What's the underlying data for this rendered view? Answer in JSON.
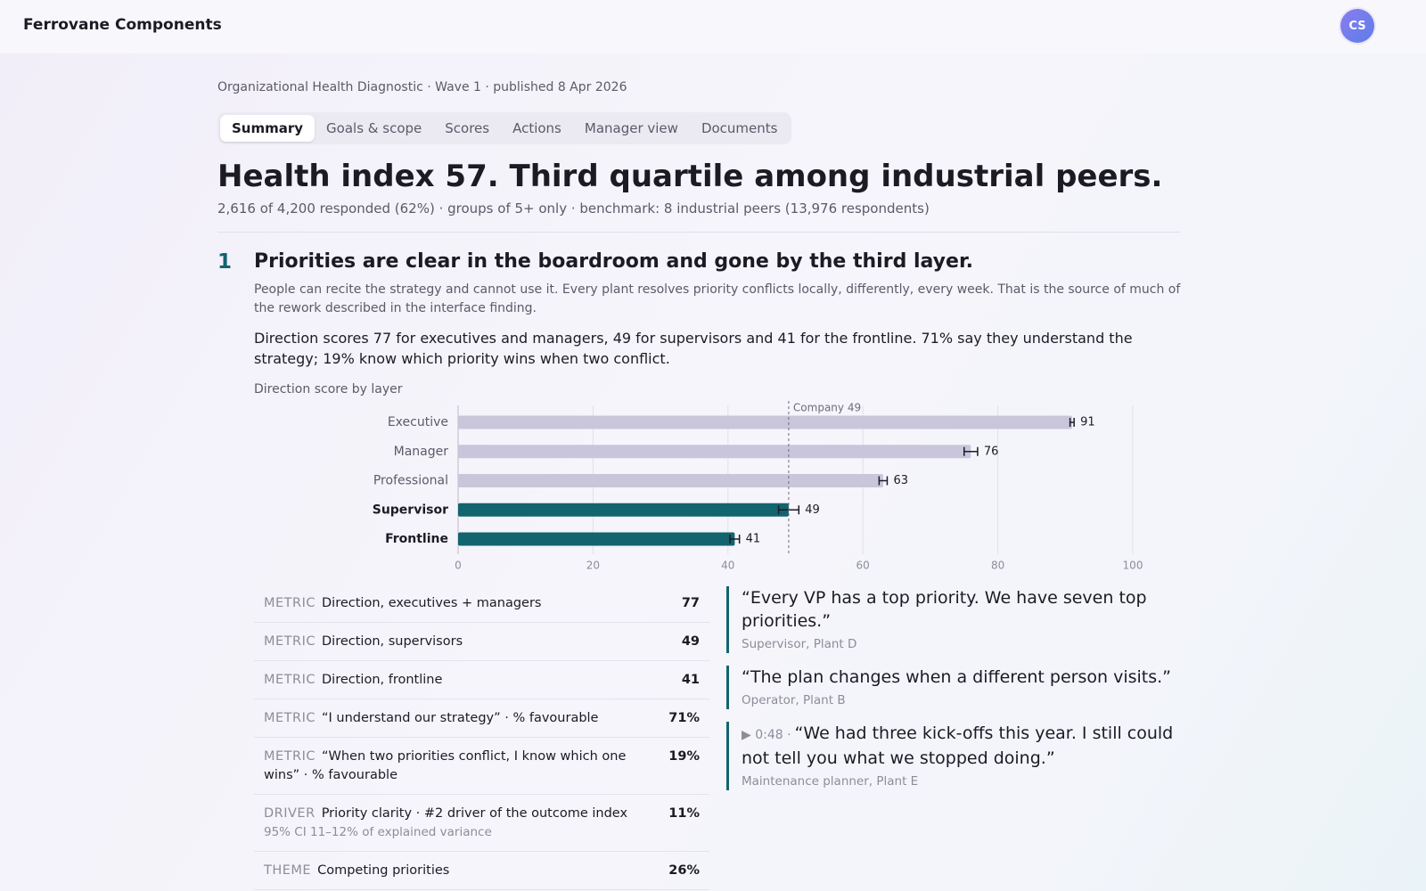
{
  "header": {
    "brand": "Ferrovane Components",
    "avatar": "CS"
  },
  "breadcrumb": "Organizational Health Diagnostic · Wave 1 · published 8 Apr 2026",
  "tabs": [
    "Summary",
    "Goals & scope",
    "Scores",
    "Actions",
    "Manager view",
    "Documents"
  ],
  "active_tab": "Summary",
  "headline": "Health index 57. Third quartile among industrial peers.",
  "subline": "2,616 of 4,200 responded (62%) · groups of 5+ only · benchmark: 8 industrial peers (13,976 respondents)",
  "finding": {
    "number": "1",
    "title": "Priorities are clear in the boardroom and gone by the third layer.",
    "description": "People can recite the strategy and cannot use it. Every plant resolves priority conflicts locally, differently, every week. That is the source of much of the rework described in the interface finding.",
    "body": "Direction scores 77 for executives and managers, 49 for supervisors and 41 for the frontline. 71% say they understand the strategy; 19% know which priority wins when two conflict."
  },
  "chart_data": {
    "type": "bar",
    "orientation": "horizontal",
    "title": "Direction score by layer",
    "categories": [
      "Executive",
      "Manager",
      "Professional",
      "Supervisor",
      "Frontline"
    ],
    "values": [
      91,
      76,
      63,
      49,
      41
    ],
    "errors": [
      0.3,
      1,
      0.6,
      1.5,
      0.7
    ],
    "base_color": "#c9c6db",
    "highlight_color": "#12646e",
    "highlighted": [
      "Supervisor",
      "Frontline"
    ],
    "reference": {
      "value": 49,
      "label": "Company 49"
    },
    "xlim": [
      0,
      100
    ],
    "xticks": [
      0,
      20,
      40,
      60,
      80,
      100
    ],
    "grid": true
  },
  "metrics": [
    {
      "kind": "METRIC",
      "label": "Direction, executives + managers",
      "value": "77"
    },
    {
      "kind": "METRIC",
      "label": "Direction, supervisors",
      "value": "49"
    },
    {
      "kind": "METRIC",
      "label": "Direction, frontline",
      "value": "41"
    },
    {
      "kind": "METRIC",
      "label": "“I understand our strategy” · % favourable",
      "value": "71%"
    },
    {
      "kind": "METRIC",
      "label": "“When two priorities conflict, I know which one wins” · % favourable",
      "value": "19%"
    },
    {
      "kind": "DRIVER",
      "label": "Priority clarity · #2 driver of the outcome index",
      "note": "95% CI 11–12% of explained variance",
      "value": "11%"
    },
    {
      "kind": "THEME",
      "label": "Competing priorities",
      "value": "26%"
    }
  ],
  "quotes": [
    {
      "text": "“Every VP has a top priority. We have seven top priorities.”",
      "attribution": "Supervisor, Plant D"
    },
    {
      "text": "“The plan changes when a different person visits.”",
      "attribution": "Operator, Plant B"
    },
    {
      "audio": "▶ 0:48 ·",
      "text": "“We had three kick-offs this year. I still could not tell you what we stopped doing.”",
      "attribution": "Maintenance planner, Plant E"
    }
  ]
}
